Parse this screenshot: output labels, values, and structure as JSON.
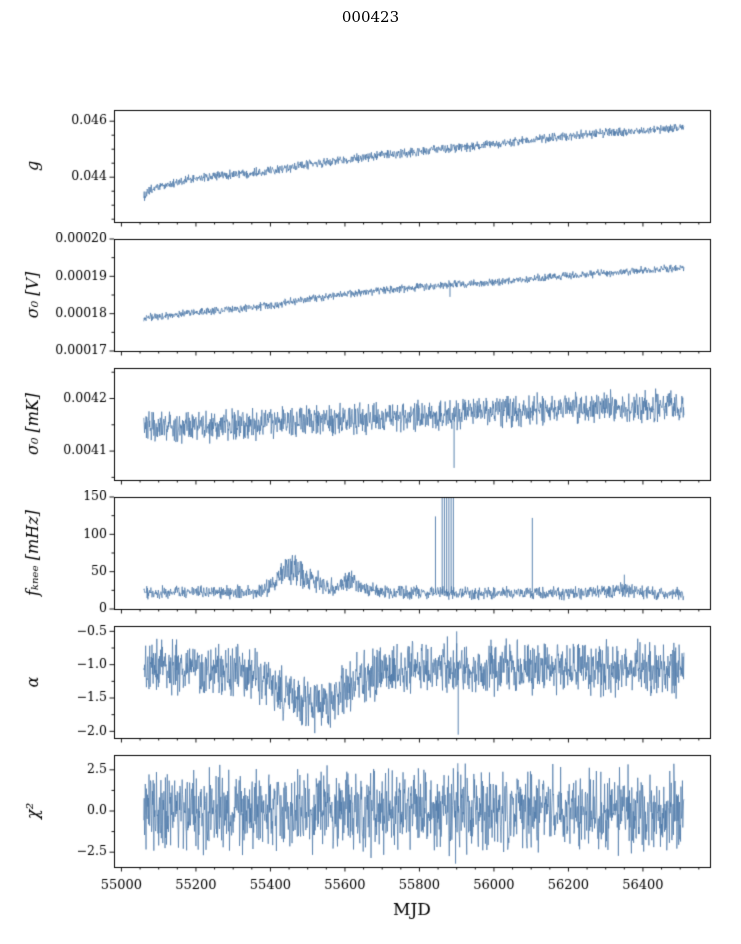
{
  "chart_data": {
    "type": "line",
    "title": "000423",
    "xlabel": "MJD",
    "xlim": [
      54980,
      56580
    ],
    "x_data_range": [
      55060,
      56510
    ],
    "xticks": [
      55000,
      55200,
      55400,
      55600,
      55800,
      56000,
      56200,
      56400
    ],
    "xtick_labels": [
      "55000",
      "55200",
      "55400",
      "55600",
      "55800",
      "56000",
      "56200",
      "56400"
    ],
    "line_color": "#4a77a8",
    "legend": "none",
    "grid": false,
    "panels": [
      {
        "name": "g",
        "ylabel": "g",
        "ylim": [
          0.0424,
          0.0464
        ],
        "yticks": [
          0.044,
          0.046
        ],
        "ytick_labels": [
          "0.044",
          "0.046"
        ],
        "yminor": [
          0.0425,
          0.043,
          0.0435,
          0.0445,
          0.045,
          0.0455
        ],
        "noise": 0.0002,
        "trend": [
          [
            55060,
            0.0433
          ],
          [
            55080,
            0.04355
          ],
          [
            55100,
            0.04365
          ],
          [
            55130,
            0.04375
          ],
          [
            55160,
            0.04385
          ],
          [
            55200,
            0.04395
          ],
          [
            55250,
            0.04405
          ],
          [
            55300,
            0.0441
          ],
          [
            55340,
            0.04415
          ],
          [
            55380,
            0.0442
          ],
          [
            55420,
            0.0443
          ],
          [
            55460,
            0.04435
          ],
          [
            55500,
            0.04445
          ],
          [
            55540,
            0.0445
          ],
          [
            55580,
            0.0446
          ],
          [
            55620,
            0.04465
          ],
          [
            55660,
            0.0447
          ],
          [
            55700,
            0.04478
          ],
          [
            55750,
            0.04485
          ],
          [
            55800,
            0.04492
          ],
          [
            55850,
            0.04498
          ],
          [
            55900,
            0.04505
          ],
          [
            55950,
            0.0451
          ],
          [
            56000,
            0.04518
          ],
          [
            56050,
            0.04525
          ],
          [
            56100,
            0.04532
          ],
          [
            56150,
            0.0454
          ],
          [
            56200,
            0.04548
          ],
          [
            56250,
            0.04552
          ],
          [
            56300,
            0.04558
          ],
          [
            56350,
            0.04562
          ],
          [
            56400,
            0.04568
          ],
          [
            56450,
            0.04572
          ],
          [
            56510,
            0.04575
          ]
        ],
        "spikes": []
      },
      {
        "name": "sigma0-V",
        "ylabel": "σ₀ [V]",
        "ylim": [
          0.00017,
          0.0002
        ],
        "yticks": [
          0.00017,
          0.00018,
          0.00019,
          0.0002
        ],
        "ytick_labels": [
          "0.00017",
          "0.00018",
          "0.00019",
          "0.00020"
        ],
        "yminor": [
          0.000175,
          0.000185,
          0.000195
        ],
        "noise": 1.3e-06,
        "trend": [
          [
            55060,
            0.0001788
          ],
          [
            55100,
            0.0001792
          ],
          [
            55150,
            0.0001797
          ],
          [
            55200,
            0.0001803
          ],
          [
            55250,
            0.0001808
          ],
          [
            55300,
            0.0001813
          ],
          [
            55350,
            0.0001818
          ],
          [
            55400,
            0.0001822
          ],
          [
            55450,
            0.0001831
          ],
          [
            55500,
            0.0001839
          ],
          [
            55550,
            0.0001846
          ],
          [
            55600,
            0.0001852
          ],
          [
            55650,
            0.0001858
          ],
          [
            55700,
            0.0001862
          ],
          [
            55750,
            0.0001866
          ],
          [
            55800,
            0.0001871
          ],
          [
            55850,
            0.0001874
          ],
          [
            55900,
            0.0001878
          ],
          [
            55950,
            0.000188
          ],
          [
            56000,
            0.0001884
          ],
          [
            56050,
            0.0001888
          ],
          [
            56100,
            0.0001893
          ],
          [
            56150,
            0.0001898
          ],
          [
            56200,
            0.0001902
          ],
          [
            56250,
            0.0001906
          ],
          [
            56300,
            0.0001909
          ],
          [
            56350,
            0.0001912
          ],
          [
            56400,
            0.0001916
          ],
          [
            56450,
            0.0001919
          ],
          [
            56510,
            0.0001922
          ]
        ],
        "spikes": [
          [
            55882,
            0.0001845
          ]
        ]
      },
      {
        "name": "sigma0-mK",
        "ylabel": "σ₀ [mK]",
        "ylim": [
          0.004045,
          0.004258
        ],
        "yticks": [
          0.0041,
          0.0042
        ],
        "ytick_labels": [
          "0.0041",
          "0.0042"
        ],
        "yminor": [
          0.00405,
          0.00415,
          0.00425
        ],
        "noise": 3.5e-05,
        "trend": [
          [
            55060,
            0.00415
          ],
          [
            55120,
            0.004146
          ],
          [
            55200,
            0.004147
          ],
          [
            55280,
            0.004149
          ],
          [
            55360,
            0.004151
          ],
          [
            55420,
            0.004154
          ],
          [
            55500,
            0.004156
          ],
          [
            55560,
            0.004159
          ],
          [
            55620,
            0.004161
          ],
          [
            55700,
            0.004163
          ],
          [
            55780,
            0.004166
          ],
          [
            55860,
            0.004168
          ],
          [
            55940,
            0.004172
          ],
          [
            56020,
            0.004176
          ],
          [
            56100,
            0.004178
          ],
          [
            56180,
            0.00418
          ],
          [
            56260,
            0.004182
          ],
          [
            56340,
            0.004184
          ],
          [
            56420,
            0.004185
          ],
          [
            56510,
            0.004186
          ]
        ],
        "spikes": [
          [
            55893,
            0.004068
          ]
        ]
      },
      {
        "name": "fknee",
        "ylabel": "fₖₙₑₑ [mHz]",
        "ylim": [
          0,
          150
        ],
        "yticks": [
          0,
          50,
          100,
          150
        ],
        "ytick_labels": [
          "0",
          "50",
          "100",
          "150"
        ],
        "yminor": [
          25,
          75,
          125
        ],
        "noise": 10,
        "noise_scale": 22,
        "trend": [
          [
            55060,
            22
          ],
          [
            55200,
            22
          ],
          [
            55300,
            23
          ],
          [
            55360,
            24
          ],
          [
            55400,
            30
          ],
          [
            55425,
            42
          ],
          [
            55450,
            55
          ],
          [
            55470,
            52
          ],
          [
            55495,
            45
          ],
          [
            55520,
            38
          ],
          [
            55545,
            33
          ],
          [
            55570,
            30
          ],
          [
            55590,
            32
          ],
          [
            55605,
            40
          ],
          [
            55620,
            36
          ],
          [
            55640,
            28
          ],
          [
            55670,
            25
          ],
          [
            55720,
            23
          ],
          [
            55800,
            22
          ],
          [
            55900,
            21
          ],
          [
            56000,
            21
          ],
          [
            56100,
            22
          ],
          [
            56200,
            21
          ],
          [
            56330,
            24
          ],
          [
            56345,
            27
          ],
          [
            56360,
            24
          ],
          [
            56420,
            21
          ],
          [
            56510,
            20
          ]
        ],
        "spikes": [
          [
            55843,
            124
          ],
          [
            55861,
            150
          ],
          [
            55867,
            150
          ],
          [
            55873,
            150
          ],
          [
            55879,
            150
          ],
          [
            55885,
            150
          ],
          [
            55891,
            150
          ],
          [
            56103,
            122
          ],
          [
            56350,
            46
          ]
        ]
      },
      {
        "name": "alpha",
        "ylabel": "α",
        "ylim": [
          -2.1,
          -0.42
        ],
        "yticks": [
          -0.5,
          -1.0,
          -1.5,
          -2.0
        ],
        "ytick_labels": [
          "−0.5",
          "−1.0",
          "−1.5",
          "−2.0"
        ],
        "yminor": [
          -0.75,
          -1.25,
          -1.75
        ],
        "noise": 0.48,
        "trend": [
          [
            55060,
            -1.02
          ],
          [
            55150,
            -1.05
          ],
          [
            55250,
            -1.1
          ],
          [
            55330,
            -1.12
          ],
          [
            55370,
            -1.18
          ],
          [
            55410,
            -1.32
          ],
          [
            55440,
            -1.45
          ],
          [
            55470,
            -1.55
          ],
          [
            55500,
            -1.62
          ],
          [
            55530,
            -1.63
          ],
          [
            55560,
            -1.55
          ],
          [
            55590,
            -1.42
          ],
          [
            55620,
            -1.28
          ],
          [
            55650,
            -1.18
          ],
          [
            55690,
            -1.12
          ],
          [
            55740,
            -1.08
          ],
          [
            55800,
            -1.05
          ],
          [
            55900,
            -1.05
          ],
          [
            56000,
            -1.06
          ],
          [
            56100,
            -1.05
          ],
          [
            56200,
            -1.06
          ],
          [
            56300,
            -1.05
          ],
          [
            56400,
            -1.06
          ],
          [
            56510,
            -1.05
          ]
        ],
        "spikes": [
          [
            55900,
            -0.5
          ],
          [
            55904,
            -2.05
          ]
        ]
      },
      {
        "name": "chi2",
        "ylabel": "χ²",
        "ylim": [
          -3.4,
          3.4
        ],
        "yticks": [
          -2.5,
          0.0,
          2.5
        ],
        "ytick_labels": [
          "−2.5",
          "0.0",
          "2.5"
        ],
        "yminor": [
          -1.25,
          1.25
        ],
        "noise": 2.9,
        "trend": [
          [
            55060,
            0
          ],
          [
            56510,
            0
          ]
        ],
        "spikes": [
          [
            55897,
            -3.2
          ],
          [
            55903,
            2.9
          ]
        ]
      }
    ]
  }
}
